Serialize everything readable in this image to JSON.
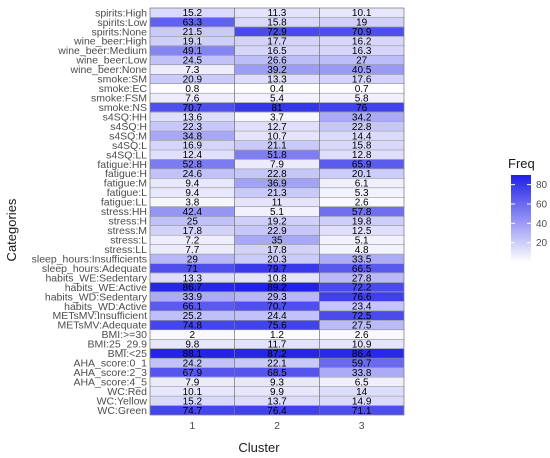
{
  "chart_data": {
    "type": "heatmap",
    "xlabel": "Cluster",
    "ylabel": "Categories",
    "x": [
      "1",
      "2",
      "3"
    ],
    "categories": [
      "spirits:High",
      "spirits:Low",
      "spirits:None",
      "wine_beer:High",
      "wine_beer:Medium",
      "wine_beer:Low",
      "wine_beer:None",
      "smoke:SM",
      "smoke:EC",
      "smoke:FSM",
      "smoke:NS",
      "s4SQ:HH",
      "s4SQ:H",
      "s4SQ:M",
      "s4SQ:L",
      "s4SQ:LL",
      "fatigue:HH",
      "fatigue:H",
      "fatigue:M",
      "fatigue:L",
      "fatigue:LL",
      "stress:HH",
      "stress:H",
      "stress:M",
      "stress:L",
      "stress:LL",
      "sleep_hours:Insufficients",
      "sleep_hours:Adequate",
      "habits_WE:Sedentary",
      "habits_WE:Active",
      "habits_WD:Sedentary",
      "habits_WD:Active",
      "METsMV:Insufficient",
      "METsMV:Adequate",
      "BMI:>=30",
      "BMI:25_29.9",
      "BMI:<25",
      "AHA_score:0_1",
      "AHA_score:2_3",
      "AHA_score:4_5",
      "WC:Red",
      "WC:Yellow",
      "WC:Green"
    ],
    "values": [
      [
        15.2,
        11.3,
        10.1
      ],
      [
        63.3,
        15.8,
        19
      ],
      [
        21.5,
        72.9,
        70.9
      ],
      [
        19.1,
        17.7,
        16.2
      ],
      [
        49.1,
        16.5,
        16.3
      ],
      [
        24.5,
        26.6,
        27
      ],
      [
        7.3,
        39.2,
        40.5
      ],
      [
        20.9,
        13.3,
        17.6
      ],
      [
        0.8,
        0.4,
        0.7
      ],
      [
        7.6,
        5.4,
        5.8
      ],
      [
        70.7,
        81,
        76
      ],
      [
        13.6,
        3.7,
        34.2
      ],
      [
        22.3,
        12.7,
        22.8
      ],
      [
        34.8,
        10.7,
        14.4
      ],
      [
        16.9,
        21.1,
        15.8
      ],
      [
        12.4,
        51.8,
        12.8
      ],
      [
        52.8,
        7.9,
        65.9
      ],
      [
        24.6,
        22.8,
        20.1
      ],
      [
        9.4,
        36.9,
        6.1
      ],
      [
        9.4,
        21.3,
        5.3
      ],
      [
        3.8,
        11,
        2.6
      ],
      [
        42.4,
        5.1,
        57.8
      ],
      [
        25,
        19.2,
        19.8
      ],
      [
        17.8,
        22.9,
        12.5
      ],
      [
        7.2,
        35,
        5.1
      ],
      [
        7.7,
        17.8,
        4.8
      ],
      [
        29,
        20.3,
        33.5
      ],
      [
        71,
        79.7,
        66.5
      ],
      [
        13.3,
        10.8,
        27.8
      ],
      [
        86.7,
        89.2,
        72.2
      ],
      [
        33.9,
        29.3,
        76.6
      ],
      [
        66.1,
        70.7,
        23.4
      ],
      [
        25.2,
        24.4,
        72.5
      ],
      [
        74.8,
        75.6,
        27.5
      ],
      [
        2,
        1.2,
        2.6
      ],
      [
        9.8,
        11.7,
        10.9
      ],
      [
        88.1,
        87.2,
        86.4
      ],
      [
        24.2,
        22.1,
        59.7
      ],
      [
        67.9,
        68.5,
        33.8
      ],
      [
        7.9,
        9.3,
        6.5
      ],
      [
        10.1,
        9.9,
        14
      ],
      [
        15.2,
        13.7,
        14.9
      ],
      [
        74.7,
        76.4,
        71.1
      ]
    ],
    "legend": {
      "title": "Freq",
      "ticks": [
        20,
        40,
        60,
        80
      ],
      "range": [
        0,
        90
      ],
      "low_color": "#ffffff",
      "high_color": "#1f1fe8",
      "placement": "right"
    }
  }
}
